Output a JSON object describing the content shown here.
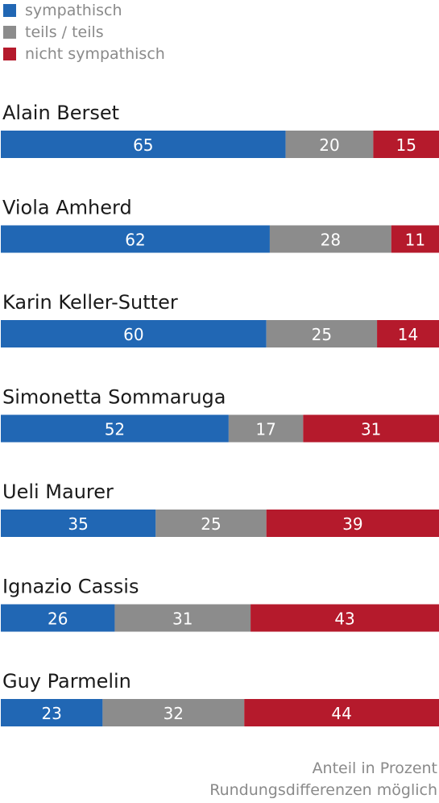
{
  "colors": {
    "sympathisch": "#2167b4",
    "teils": "#8c8c8c",
    "nicht": "#b51a2c"
  },
  "legend": [
    {
      "label": "sympathisch",
      "color": "#2167b4"
    },
    {
      "label": "teils / teils",
      "color": "#8c8c8c"
    },
    {
      "label": "nicht sympathisch",
      "color": "#b51a2c"
    }
  ],
  "footnote": {
    "line1": "Anteil in Prozent",
    "line2": "Rundungsdifferenzen möglich"
  },
  "chart_data": {
    "type": "bar",
    "orientation": "horizontal",
    "stacked": true,
    "categories": [
      "Alain Berset",
      "Viola Amherd",
      "Karin Keller-Sutter",
      "Simonetta Sommaruga",
      "Ueli Maurer",
      "Ignazio Cassis",
      "Guy Parmelin"
    ],
    "series": [
      {
        "name": "sympathisch",
        "color": "#2167b4",
        "values": [
          65,
          62,
          60,
          52,
          35,
          26,
          23
        ]
      },
      {
        "name": "teils / teils",
        "color": "#8c8c8c",
        "values": [
          20,
          28,
          25,
          17,
          25,
          31,
          32
        ]
      },
      {
        "name": "nicht sympathisch",
        "color": "#b51a2c",
        "values": [
          15,
          11,
          14,
          31,
          39,
          43,
          44
        ]
      }
    ],
    "title": "",
    "xlabel": "",
    "ylabel": "",
    "legend_position": "top-left",
    "grid": false
  }
}
